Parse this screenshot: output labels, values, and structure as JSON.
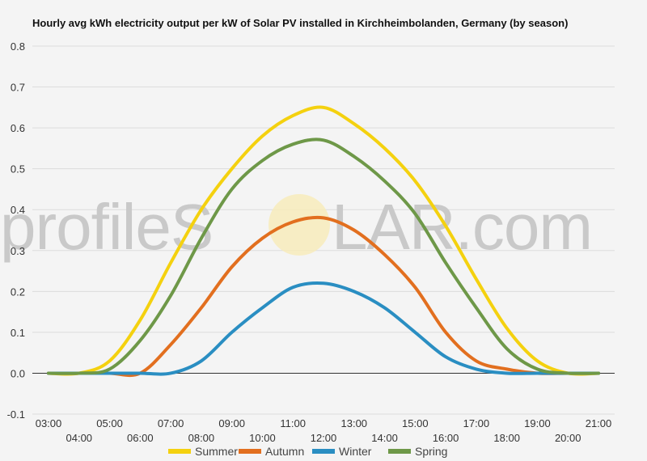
{
  "chart_data": {
    "type": "line",
    "title": "Hourly avg kWh electricity output per kW of Solar PV installed in Kirchheimbolanden, Germany (by season)",
    "xlabel": "",
    "ylabel": "",
    "watermark": {
      "left": "profileS",
      "right": "LAR.com"
    },
    "ylim": [
      -0.1,
      0.8
    ],
    "yticks": [
      "-0.1",
      "0.0",
      "0.1",
      "0.2",
      "0.3",
      "0.4",
      "0.5",
      "0.6",
      "0.7",
      "0.8"
    ],
    "ytick_values": [
      -0.1,
      0.0,
      0.1,
      0.2,
      0.3,
      0.4,
      0.5,
      0.6,
      0.7,
      0.8
    ],
    "xlim": [
      3,
      21
    ],
    "x_tick_labels": [
      "03:00",
      "04:00",
      "05:00",
      "06:00",
      "07:00",
      "08:00",
      "09:00",
      "10:00",
      "11:00",
      "12:00",
      "13:00",
      "14:00",
      "15:00",
      "16:00",
      "17:00",
      "18:00",
      "19:00",
      "20:00",
      "21:00"
    ],
    "x_tick_values": [
      3,
      4,
      5,
      6,
      7,
      8,
      9,
      10,
      11,
      12,
      13,
      14,
      15,
      16,
      17,
      18,
      19,
      20,
      21
    ],
    "grid": true,
    "legend_position": "bottom",
    "x": [
      3,
      4,
      5,
      6,
      7,
      8,
      9,
      10,
      11,
      12,
      13,
      14,
      15,
      16,
      17,
      18,
      19,
      20,
      21
    ],
    "series": [
      {
        "name": "Summer",
        "color": "#f4d10f",
        "values": [
          0.0,
          0.0,
          0.03,
          0.13,
          0.27,
          0.4,
          0.5,
          0.58,
          0.63,
          0.65,
          0.61,
          0.55,
          0.47,
          0.36,
          0.23,
          0.11,
          0.03,
          0.0,
          0.0
        ]
      },
      {
        "name": "Autumn",
        "color": "#e26f1f",
        "values": [
          0.0,
          0.0,
          0.0,
          0.0,
          0.07,
          0.16,
          0.26,
          0.33,
          0.37,
          0.38,
          0.35,
          0.29,
          0.21,
          0.1,
          0.03,
          0.01,
          0.0,
          0.0,
          0.0
        ]
      },
      {
        "name": "Winter",
        "color": "#2a8ec2",
        "values": [
          0.0,
          0.0,
          0.0,
          0.0,
          0.0,
          0.03,
          0.1,
          0.16,
          0.21,
          0.22,
          0.2,
          0.16,
          0.1,
          0.04,
          0.01,
          0.0,
          0.0,
          0.0,
          0.0
        ]
      },
      {
        "name": "Spring",
        "color": "#6e9848",
        "values": [
          0.0,
          0.0,
          0.01,
          0.08,
          0.19,
          0.33,
          0.45,
          0.52,
          0.56,
          0.57,
          0.53,
          0.47,
          0.39,
          0.27,
          0.16,
          0.06,
          0.01,
          0.0,
          0.0
        ]
      }
    ]
  }
}
